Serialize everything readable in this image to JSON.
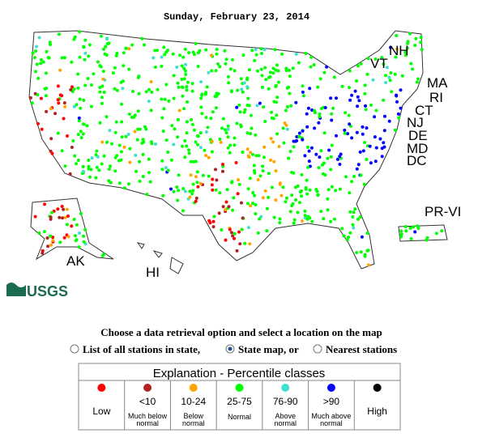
{
  "header": {
    "date": "Sunday, February 23, 2014"
  },
  "map_labels": [
    "NH",
    "VT",
    "MA",
    "RI",
    "CT",
    "NJ",
    "DE",
    "MD",
    "DC",
    "PR-VI",
    "AK",
    "HI"
  ],
  "logo": "USGS",
  "instructions": "Choose a data retrieval option and select a location on the map",
  "options": [
    "List of all stations in state,",
    "State map, or",
    "Nearest stations"
  ],
  "selected_option": 1,
  "legend": {
    "title": "Explanation - Percentile classes",
    "classes": [
      {
        "color": "#ff0000",
        "label": "Low"
      },
      {
        "color": "#b22222",
        "range": "<10",
        "label": "Much below normal"
      },
      {
        "color": "#ffa500",
        "range": "10-24",
        "label": "Below normal"
      },
      {
        "color": "#00ff00",
        "range": "25-75",
        "label": "Normal"
      },
      {
        "color": "#40e0d0",
        "range": "76-90",
        "label": "Above normal"
      },
      {
        "color": "#0000ff",
        "range": ">90",
        "label": "Much above normal"
      },
      {
        "color": "#000000",
        "label": "High"
      }
    ]
  }
}
